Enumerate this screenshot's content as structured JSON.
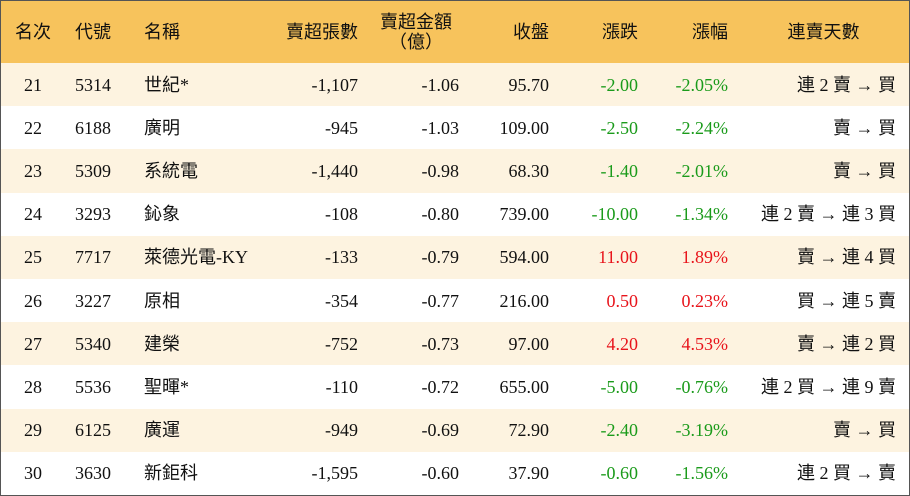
{
  "table": {
    "header": [
      "名次",
      "代號",
      "名稱",
      "賣超張數",
      [
        "賣超金額",
        "（億）"
      ],
      "收盤",
      "漲跌",
      "漲幅",
      "連賣天數"
    ],
    "rows": [
      [
        "21",
        "5314",
        "世紀*",
        "-1,107",
        "-1.06",
        "95.70",
        "-2.00",
        "-2.05%",
        "連 2 賣 → 買"
      ],
      [
        "22",
        "6188",
        "廣明",
        "-945",
        "-1.03",
        "109.00",
        "-2.50",
        "-2.24%",
        "賣 → 買"
      ],
      [
        "23",
        "5309",
        "系統電",
        "-1,440",
        "-0.98",
        "68.30",
        "-1.40",
        "-2.01%",
        "賣 → 買"
      ],
      [
        "24",
        "3293",
        "鈊象",
        "-108",
        "-0.80",
        "739.00",
        "-10.00",
        "-1.34%",
        "連 2 賣 → 連 3 買"
      ],
      [
        "25",
        "7717",
        "萊德光電-KY",
        "-133",
        "-0.79",
        "594.00",
        "11.00",
        "1.89%",
        "賣 → 連 4 買"
      ],
      [
        "26",
        "3227",
        "原相",
        "-354",
        "-0.77",
        "216.00",
        "0.50",
        "0.23%",
        "買 → 連 5 賣"
      ],
      [
        "27",
        "5340",
        "建榮",
        "-752",
        "-0.73",
        "97.00",
        "4.20",
        "4.53%",
        "賣 → 連 2 買"
      ],
      [
        "28",
        "5536",
        "聖暉*",
        "-110",
        "-0.72",
        "655.00",
        "-5.00",
        "-0.76%",
        "連 2 買 → 連 9 賣"
      ],
      [
        "29",
        "6125",
        "廣運",
        "-949",
        "-0.69",
        "72.90",
        "-2.40",
        "-3.19%",
        "賣 → 買"
      ],
      [
        "30",
        "3630",
        "新鉅科",
        "-1,595",
        "-0.60",
        "37.90",
        "-0.60",
        "-1.56%",
        "連 2 買 → 賣"
      ]
    ]
  },
  "colors": {
    "up": "#e8141b",
    "down": "#1b9b1b",
    "header": "#f7c35c",
    "odd_row": "#fdf3e0",
    "even_row": "#ffffff"
  }
}
